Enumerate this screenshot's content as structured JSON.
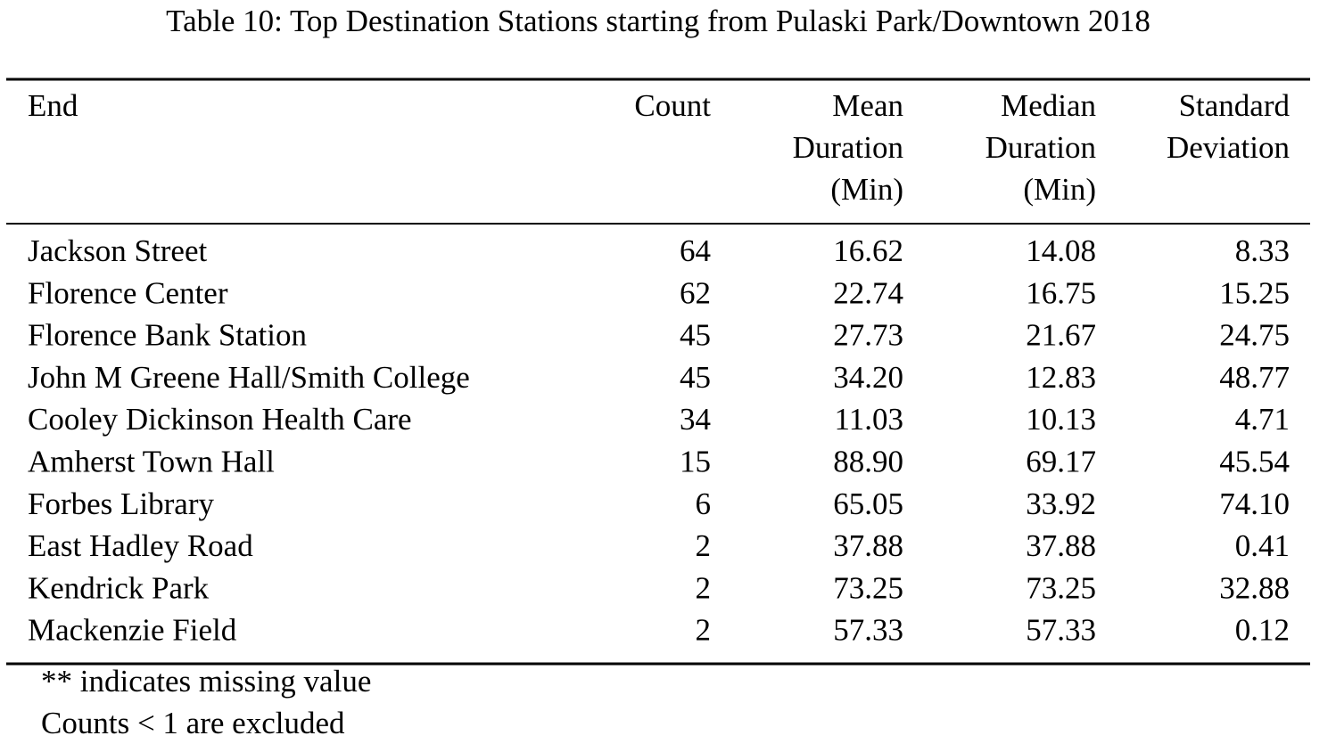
{
  "caption": "Table 10: Top Destination Stations starting from Pulaski Park/Downtown 2018",
  "table": {
    "header": [
      [
        "End"
      ],
      [
        "Count"
      ],
      [
        "Mean",
        "Duration",
        "(Min)"
      ],
      [
        "Median",
        "Duration",
        "(Min)"
      ],
      [
        "Standard",
        "Deviation"
      ]
    ],
    "rows": [
      [
        "Jackson Street",
        "64",
        "16.62",
        "14.08",
        "8.33"
      ],
      [
        "Florence Center",
        "62",
        "22.74",
        "16.75",
        "15.25"
      ],
      [
        "Florence Bank Station",
        "45",
        "27.73",
        "21.67",
        "24.75"
      ],
      [
        "John M Greene Hall/Smith College",
        "45",
        "34.20",
        "12.83",
        "48.77"
      ],
      [
        "Cooley Dickinson Health Care",
        "34",
        "11.03",
        "10.13",
        "4.71"
      ],
      [
        "Amherst Town Hall",
        "15",
        "88.90",
        "69.17",
        "45.54"
      ],
      [
        "Forbes Library",
        "6",
        "65.05",
        "33.92",
        "74.10"
      ],
      [
        "East Hadley Road",
        "2",
        "37.88",
        "37.88",
        "0.41"
      ],
      [
        "Kendrick Park",
        "2",
        "73.25",
        "73.25",
        "32.88"
      ],
      [
        "Mackenzie Field",
        "2",
        "57.33",
        "57.33",
        "0.12"
      ]
    ]
  },
  "notes": [
    "** indicates missing value",
    "Counts < 1 are excluded"
  ]
}
